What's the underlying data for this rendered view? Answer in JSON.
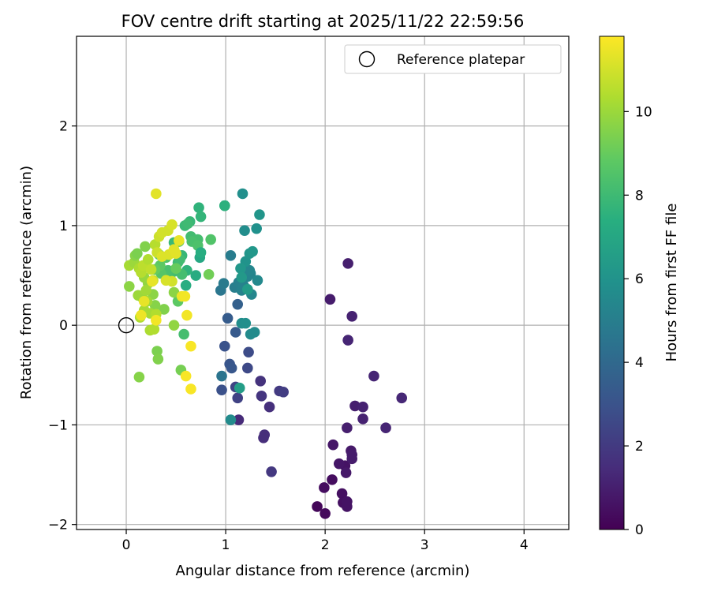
{
  "chart_data": {
    "type": "scatter",
    "title": "FOV centre drift starting at 2025/11/22 22:59:56",
    "xlabel": "Angular distance from reference (arcmin)",
    "ylabel": "Rotation from reference (arcmin)",
    "xlim": [
      -0.5,
      4.45
    ],
    "ylim": [
      -2.05,
      2.9
    ],
    "xticks": [
      0,
      1,
      2,
      3,
      4
    ],
    "xtick_labels": [
      "0",
      "1",
      "2",
      "3",
      "4"
    ],
    "yticks": [
      -2,
      -1,
      0,
      1,
      2
    ],
    "ytick_labels": [
      "−2",
      "−1",
      "0",
      "1",
      "2"
    ],
    "grid": true,
    "legend": {
      "location": "top-right",
      "label": "Reference platepar"
    },
    "reference_point": {
      "x": 0,
      "y": 0
    },
    "colorbar": {
      "label": "Hours from first FF file",
      "colormap": "viridis",
      "range": [
        0,
        11.8
      ],
      "ticks": [
        0,
        2,
        4,
        6,
        8,
        10
      ],
      "tick_labels": [
        "0",
        "2",
        "4",
        "6",
        "8",
        "10"
      ]
    },
    "points": [
      {
        "x": 1.92,
        "y": -1.82,
        "h": 0.2
      },
      {
        "x": 2.0,
        "y": -1.89,
        "h": 0.3
      },
      {
        "x": 1.99,
        "y": -1.63,
        "h": 0.4
      },
      {
        "x": 2.07,
        "y": -1.55,
        "h": 0.4
      },
      {
        "x": 2.17,
        "y": -1.69,
        "h": 0.5
      },
      {
        "x": 2.18,
        "y": -1.78,
        "h": 0.5
      },
      {
        "x": 2.22,
        "y": -1.82,
        "h": 0.6
      },
      {
        "x": 2.22,
        "y": -1.77,
        "h": 0.6
      },
      {
        "x": 2.2,
        "y": -1.41,
        "h": 0.6
      },
      {
        "x": 2.14,
        "y": -1.39,
        "h": 0.7
      },
      {
        "x": 2.08,
        "y": -1.2,
        "h": 0.7
      },
      {
        "x": 2.21,
        "y": -1.48,
        "h": 0.8
      },
      {
        "x": 2.26,
        "y": -1.26,
        "h": 0.8
      },
      {
        "x": 2.27,
        "y": -1.3,
        "h": 0.9
      },
      {
        "x": 2.27,
        "y": -1.34,
        "h": 0.9
      },
      {
        "x": 2.22,
        "y": -1.03,
        "h": 1.0
      },
      {
        "x": 2.3,
        "y": -0.81,
        "h": 1.0
      },
      {
        "x": 2.38,
        "y": -0.82,
        "h": 1.1
      },
      {
        "x": 2.38,
        "y": -0.94,
        "h": 1.1
      },
      {
        "x": 2.49,
        "y": -0.51,
        "h": 1.2
      },
      {
        "x": 2.61,
        "y": -1.03,
        "h": 1.2
      },
      {
        "x": 2.77,
        "y": -0.73,
        "h": 1.3
      },
      {
        "x": 2.23,
        "y": 0.62,
        "h": 1.0
      },
      {
        "x": 2.05,
        "y": 0.26,
        "h": 0.9
      },
      {
        "x": 2.27,
        "y": 0.09,
        "h": 1.1
      },
      {
        "x": 2.23,
        "y": -0.15,
        "h": 1.2
      },
      {
        "x": 1.13,
        "y": -0.95,
        "h": 1.4
      },
      {
        "x": 1.38,
        "y": -1.13,
        "h": 1.5
      },
      {
        "x": 1.39,
        "y": -1.1,
        "h": 1.5
      },
      {
        "x": 1.44,
        "y": -0.82,
        "h": 1.6
      },
      {
        "x": 1.35,
        "y": -0.56,
        "h": 1.7
      },
      {
        "x": 1.36,
        "y": -0.71,
        "h": 1.8
      },
      {
        "x": 1.46,
        "y": -1.47,
        "h": 1.9
      },
      {
        "x": 1.54,
        "y": -0.66,
        "h": 2.0
      },
      {
        "x": 1.58,
        "y": -0.67,
        "h": 2.1
      },
      {
        "x": 1.12,
        "y": -0.73,
        "h": 2.3
      },
      {
        "x": 1.1,
        "y": -0.62,
        "h": 2.4
      },
      {
        "x": 1.22,
        "y": -0.43,
        "h": 2.6
      },
      {
        "x": 1.23,
        "y": -0.27,
        "h": 2.7
      },
      {
        "x": 0.96,
        "y": -0.65,
        "h": 2.9
      },
      {
        "x": 0.99,
        "y": -0.21,
        "h": 3.0
      },
      {
        "x": 1.04,
        "y": -0.39,
        "h": 3.1
      },
      {
        "x": 1.06,
        "y": -0.43,
        "h": 3.2
      },
      {
        "x": 1.1,
        "y": -0.07,
        "h": 3.3
      },
      {
        "x": 1.02,
        "y": 0.07,
        "h": 3.4
      },
      {
        "x": 1.12,
        "y": 0.21,
        "h": 3.6
      },
      {
        "x": 1.05,
        "y": -0.95,
        "h": 5.6
      },
      {
        "x": 1.14,
        "y": -0.63,
        "h": 6.5
      },
      {
        "x": 0.96,
        "y": -0.51,
        "h": 4.5
      },
      {
        "x": 0.95,
        "y": 0.35,
        "h": 4.6
      },
      {
        "x": 0.98,
        "y": 0.42,
        "h": 4.8
      },
      {
        "x": 1.05,
        "y": 0.7,
        "h": 4.9
      },
      {
        "x": 1.09,
        "y": 0.38,
        "h": 5.0
      },
      {
        "x": 1.13,
        "y": 0.43,
        "h": 5.1
      },
      {
        "x": 1.16,
        "y": 0.35,
        "h": 5.2
      },
      {
        "x": 1.18,
        "y": 0.4,
        "h": 5.2
      },
      {
        "x": 1.22,
        "y": 0.49,
        "h": 5.3
      },
      {
        "x": 1.25,
        "y": 0.52,
        "h": 5.3
      },
      {
        "x": 1.24,
        "y": 0.55,
        "h": 5.4
      },
      {
        "x": 1.26,
        "y": 0.31,
        "h": 5.4
      },
      {
        "x": 1.32,
        "y": 0.45,
        "h": 5.5
      },
      {
        "x": 1.29,
        "y": -0.07,
        "h": 5.6
      },
      {
        "x": 1.25,
        "y": -0.09,
        "h": 5.6
      },
      {
        "x": 1.16,
        "y": 0.02,
        "h": 5.7
      },
      {
        "x": 1.2,
        "y": 0.02,
        "h": 5.8
      },
      {
        "x": 1.19,
        "y": 0.95,
        "h": 5.7
      },
      {
        "x": 1.17,
        "y": 1.32,
        "h": 5.8
      },
      {
        "x": 1.31,
        "y": 0.97,
        "h": 5.9
      },
      {
        "x": 1.34,
        "y": 1.11,
        "h": 6.1
      },
      {
        "x": 1.2,
        "y": 0.64,
        "h": 6.0
      },
      {
        "x": 1.24,
        "y": 0.72,
        "h": 6.1
      },
      {
        "x": 1.27,
        "y": 0.74,
        "h": 6.2
      },
      {
        "x": 1.15,
        "y": 0.57,
        "h": 6.2
      },
      {
        "x": 1.16,
        "y": 0.48,
        "h": 6.3
      },
      {
        "x": 1.22,
        "y": 0.36,
        "h": 6.4
      },
      {
        "x": 0.99,
        "y": 1.2,
        "h": 7.4
      },
      {
        "x": 0.99,
        "y": 1.2,
        "h": 7.5
      },
      {
        "x": 0.73,
        "y": 1.18,
        "h": 7.6
      },
      {
        "x": 0.75,
        "y": 1.09,
        "h": 7.7
      },
      {
        "x": 0.64,
        "y": 1.04,
        "h": 7.8
      },
      {
        "x": 0.59,
        "y": 1.0,
        "h": 7.9
      },
      {
        "x": 0.62,
        "y": 1.02,
        "h": 8.0
      },
      {
        "x": 0.65,
        "y": 0.89,
        "h": 8.1
      },
      {
        "x": 0.72,
        "y": 0.86,
        "h": 8.2
      },
      {
        "x": 0.66,
        "y": 0.84,
        "h": 8.3
      },
      {
        "x": 0.72,
        "y": 0.8,
        "h": 8.4
      },
      {
        "x": 0.85,
        "y": 0.86,
        "h": 8.5
      },
      {
        "x": 0.74,
        "y": 0.68,
        "h": 7.0
      },
      {
        "x": 0.75,
        "y": 0.73,
        "h": 7.3
      },
      {
        "x": 0.7,
        "y": 0.5,
        "h": 7.2
      },
      {
        "x": 0.61,
        "y": 0.55,
        "h": 7.6
      },
      {
        "x": 0.6,
        "y": 0.4,
        "h": 7.3
      },
      {
        "x": 0.56,
        "y": 0.7,
        "h": 7.8
      },
      {
        "x": 0.53,
        "y": 0.84,
        "h": 8.6
      },
      {
        "x": 0.48,
        "y": 0.83,
        "h": 7.9
      },
      {
        "x": 0.52,
        "y": 0.63,
        "h": 8.0
      },
      {
        "x": 0.54,
        "y": 0.66,
        "h": 8.1
      },
      {
        "x": 0.56,
        "y": 0.51,
        "h": 8.2
      },
      {
        "x": 0.48,
        "y": 0.54,
        "h": 8.2
      },
      {
        "x": 0.42,
        "y": 0.55,
        "h": 8.3
      },
      {
        "x": 0.45,
        "y": 0.45,
        "h": 8.4
      },
      {
        "x": 0.4,
        "y": 0.68,
        "h": 8.5
      },
      {
        "x": 0.35,
        "y": 0.52,
        "h": 8.6
      },
      {
        "x": 0.33,
        "y": 0.71,
        "h": 8.7
      },
      {
        "x": 0.34,
        "y": 0.6,
        "h": 8.8
      },
      {
        "x": 0.29,
        "y": 0.56,
        "h": 9.0
      },
      {
        "x": 0.5,
        "y": 0.57,
        "h": 9.0
      },
      {
        "x": 0.83,
        "y": 0.51,
        "h": 9.2
      },
      {
        "x": 0.53,
        "y": 0.27,
        "h": 9.1
      },
      {
        "x": 0.52,
        "y": 0.24,
        "h": 8.8
      },
      {
        "x": 0.58,
        "y": -0.09,
        "h": 8.2
      },
      {
        "x": 0.55,
        "y": -0.45,
        "h": 9.3
      },
      {
        "x": 0.31,
        "y": -0.26,
        "h": 9.4
      },
      {
        "x": 0.32,
        "y": -0.34,
        "h": 9.5
      },
      {
        "x": 0.13,
        "y": -0.52,
        "h": 9.6
      },
      {
        "x": 0.48,
        "y": 0.0,
        "h": 9.8
      },
      {
        "x": 0.48,
        "y": 0.33,
        "h": 9.7
      },
      {
        "x": 0.38,
        "y": 0.16,
        "h": 9.5
      },
      {
        "x": 0.29,
        "y": 0.2,
        "h": 9.6
      },
      {
        "x": 0.27,
        "y": 0.31,
        "h": 9.7
      },
      {
        "x": 0.22,
        "y": 0.42,
        "h": 9.8
      },
      {
        "x": 0.18,
        "y": 0.48,
        "h": 9.9
      },
      {
        "x": 0.12,
        "y": 0.3,
        "h": 10.0
      },
      {
        "x": 0.16,
        "y": 0.28,
        "h": 10.0
      },
      {
        "x": 0.2,
        "y": 0.35,
        "h": 10.1
      },
      {
        "x": 0.21,
        "y": 0.24,
        "h": 10.1
      },
      {
        "x": 0.24,
        "y": 0.12,
        "h": 10.2
      },
      {
        "x": 0.18,
        "y": 0.15,
        "h": 10.2
      },
      {
        "x": 0.14,
        "y": 0.08,
        "h": 10.3
      },
      {
        "x": 0.24,
        "y": -0.05,
        "h": 10.3
      },
      {
        "x": 0.28,
        "y": -0.04,
        "h": 10.4
      },
      {
        "x": 0.3,
        "y": 0.11,
        "h": 10.4
      },
      {
        "x": 0.03,
        "y": 0.39,
        "h": 9.7
      },
      {
        "x": 0.03,
        "y": 0.6,
        "h": 10.2
      },
      {
        "x": 0.08,
        "y": 0.63,
        "h": 10.0
      },
      {
        "x": 0.09,
        "y": 0.7,
        "h": 9.6
      },
      {
        "x": 0.11,
        "y": 0.72,
        "h": 9.4
      },
      {
        "x": 0.13,
        "y": 0.57,
        "h": 10.3
      },
      {
        "x": 0.15,
        "y": 0.53,
        "h": 10.5
      },
      {
        "x": 0.17,
        "y": 0.6,
        "h": 10.6
      },
      {
        "x": 0.19,
        "y": 0.79,
        "h": 9.5
      },
      {
        "x": 0.22,
        "y": 0.66,
        "h": 10.4
      },
      {
        "x": 0.25,
        "y": 0.56,
        "h": 10.7
      },
      {
        "x": 0.27,
        "y": 0.45,
        "h": 10.8
      },
      {
        "x": 0.29,
        "y": 0.81,
        "h": 10.5
      },
      {
        "x": 0.31,
        "y": 0.73,
        "h": 10.9
      },
      {
        "x": 0.33,
        "y": 0.89,
        "h": 10.9
      },
      {
        "x": 0.36,
        "y": 0.93,
        "h": 11.0
      },
      {
        "x": 0.42,
        "y": 0.95,
        "h": 11.0
      },
      {
        "x": 0.46,
        "y": 1.01,
        "h": 11.1
      },
      {
        "x": 0.36,
        "y": 0.69,
        "h": 11.2
      },
      {
        "x": 0.43,
        "y": 0.71,
        "h": 11.2
      },
      {
        "x": 0.48,
        "y": 0.76,
        "h": 11.3
      },
      {
        "x": 0.5,
        "y": 0.72,
        "h": 11.3
      },
      {
        "x": 0.46,
        "y": 0.44,
        "h": 11.0
      },
      {
        "x": 0.4,
        "y": 0.45,
        "h": 11.1
      },
      {
        "x": 0.26,
        "y": 0.44,
        "h": 11.4
      },
      {
        "x": 0.18,
        "y": 0.24,
        "h": 11.4
      },
      {
        "x": 0.15,
        "y": 0.1,
        "h": 11.5
      },
      {
        "x": 0.3,
        "y": 0.05,
        "h": 11.6
      },
      {
        "x": 0.3,
        "y": 1.32,
        "h": 11.3
      },
      {
        "x": 0.53,
        "y": 0.85,
        "h": 11.4
      },
      {
        "x": 0.56,
        "y": 0.29,
        "h": 11.5
      },
      {
        "x": 0.59,
        "y": 0.29,
        "h": 11.6
      },
      {
        "x": 0.61,
        "y": 0.1,
        "h": 11.6
      },
      {
        "x": 0.65,
        "y": -0.21,
        "h": 11.7
      },
      {
        "x": 0.6,
        "y": -0.51,
        "h": 11.7
      },
      {
        "x": 0.65,
        "y": -0.64,
        "h": 11.7
      }
    ]
  }
}
